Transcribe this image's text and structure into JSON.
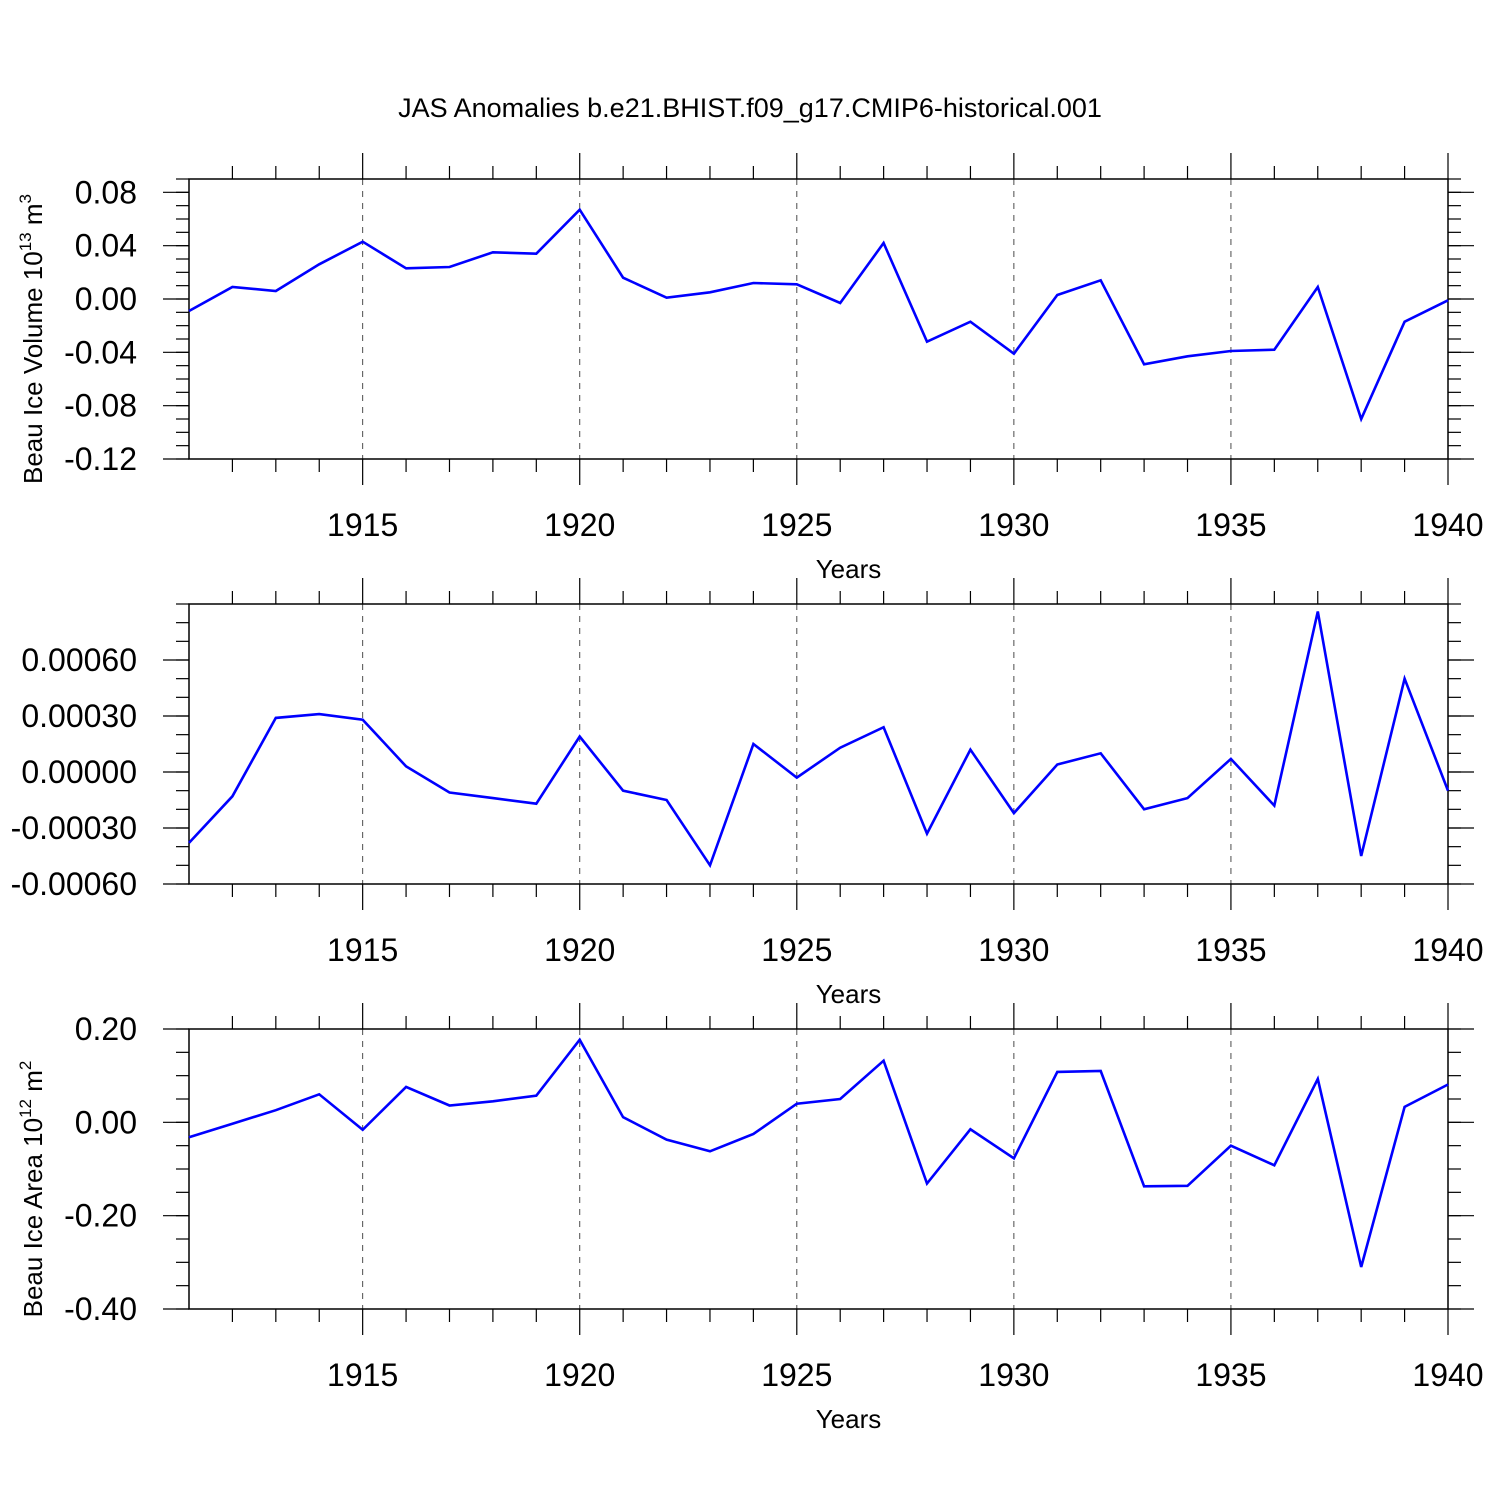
{
  "title": "JAS Anomalies b.e21.BHIST.f09_g17.CMIP6-historical.001",
  "line_color": "#0000ff",
  "chart_data": [
    {
      "type": "line",
      "name": "ice-volume",
      "title": "JAS Anomalies b.e21.BHIST.f09_g17.CMIP6-historical.001",
      "xlabel": "Years",
      "ylabel": {
        "text": "Beau Ice Volume 10",
        "sup1": "13",
        "mid": " m",
        "sup2": "3"
      },
      "xlim": [
        1911,
        1940
      ],
      "ylim": [
        -0.12,
        0.09
      ],
      "xticks": [
        1915,
        1920,
        1925,
        1930,
        1935,
        1940
      ],
      "yticks": [
        -0.12,
        -0.08,
        -0.04,
        0.0,
        0.04,
        0.08
      ],
      "ytick_labels": [
        "-0.12",
        "-0.08",
        "-0.04",
        "0.00",
        "0.04",
        "0.08"
      ],
      "yminor_step": 0.01,
      "grid": "dashed vertical at major x ticks",
      "series": [
        {
          "name": "Beau Ice Volume",
          "x": [
            1911,
            1912,
            1913,
            1914,
            1915,
            1916,
            1917,
            1918,
            1919,
            1920,
            1921,
            1922,
            1923,
            1924,
            1925,
            1926,
            1927,
            1928,
            1929,
            1930,
            1931,
            1932,
            1933,
            1934,
            1935,
            1936,
            1937,
            1938,
            1939,
            1940
          ],
          "values": [
            -0.009,
            0.009,
            0.006,
            0.026,
            0.043,
            0.023,
            0.024,
            0.035,
            0.034,
            0.067,
            0.016,
            0.001,
            0.005,
            0.012,
            0.011,
            -0.003,
            0.042,
            -0.032,
            -0.017,
            -0.041,
            0.003,
            0.014,
            -0.049,
            -0.043,
            -0.039,
            -0.038,
            0.009,
            -0.09,
            -0.017,
            -0.001
          ]
        }
      ]
    },
    {
      "type": "line",
      "name": "middle-panel",
      "xlabel": "Years",
      "ylabel": null,
      "xlim": [
        1911,
        1940
      ],
      "ylim": [
        -0.0006,
        0.0009
      ],
      "xticks": [
        1915,
        1920,
        1925,
        1930,
        1935,
        1940
      ],
      "yticks": [
        -0.0006,
        -0.0003,
        0.0,
        0.0003,
        0.0006
      ],
      "ytick_labels": [
        "-0.00060",
        "-0.00030",
        "0.00000",
        "0.00030",
        "0.00060"
      ],
      "yminor_step": 0.0001,
      "grid": "dashed vertical at major x ticks",
      "series": [
        {
          "name": "anomaly",
          "x": [
            1911,
            1912,
            1913,
            1914,
            1915,
            1916,
            1917,
            1918,
            1919,
            1920,
            1921,
            1922,
            1923,
            1924,
            1925,
            1926,
            1927,
            1928,
            1929,
            1930,
            1931,
            1932,
            1933,
            1934,
            1935,
            1936,
            1937,
            1938,
            1939,
            1940
          ],
          "values": [
            -0.00038,
            -0.00013,
            0.00029,
            0.00031,
            0.00028,
            3e-05,
            -0.00011,
            -0.00014,
            -0.00017,
            0.00019,
            -0.0001,
            -0.00015,
            -0.0005,
            0.00015,
            -3e-05,
            0.00013,
            0.00024,
            -0.00033,
            0.00012,
            -0.00022,
            4e-05,
            0.0001,
            -0.0002,
            -0.00014,
            7e-05,
            -0.00018,
            0.00086,
            -0.00045,
            0.0005,
            -0.0001
          ]
        }
      ]
    },
    {
      "type": "line",
      "name": "ice-area",
      "xlabel": "Years",
      "ylabel": {
        "text": "Beau Ice Area 10",
        "sup1": "12",
        "mid": " m",
        "sup2": "2"
      },
      "xlim": [
        1911,
        1940
      ],
      "ylim": [
        -0.4,
        0.2
      ],
      "xticks": [
        1915,
        1920,
        1925,
        1930,
        1935,
        1940
      ],
      "yticks": [
        -0.4,
        -0.2,
        0.0,
        0.2
      ],
      "ytick_labels": [
        "-0.40",
        "-0.20",
        "0.00",
        "0.20"
      ],
      "yminor_step": 0.05,
      "grid": "dashed vertical at major x ticks",
      "series": [
        {
          "name": "Beau Ice Area",
          "x": [
            1911,
            1912,
            1913,
            1914,
            1915,
            1916,
            1917,
            1918,
            1919,
            1920,
            1921,
            1922,
            1923,
            1924,
            1925,
            1926,
            1927,
            1928,
            1929,
            1930,
            1931,
            1932,
            1933,
            1934,
            1935,
            1936,
            1937,
            1938,
            1939,
            1940
          ],
          "values": [
            -0.032,
            -0.003,
            0.026,
            0.06,
            -0.016,
            0.076,
            0.036,
            0.045,
            0.057,
            0.177,
            0.011,
            -0.037,
            -0.062,
            -0.025,
            0.04,
            0.05,
            0.132,
            -0.131,
            -0.015,
            -0.077,
            0.108,
            0.11,
            -0.137,
            -0.136,
            -0.05,
            -0.092,
            0.093,
            -0.31,
            0.033,
            0.081
          ]
        }
      ]
    }
  ]
}
